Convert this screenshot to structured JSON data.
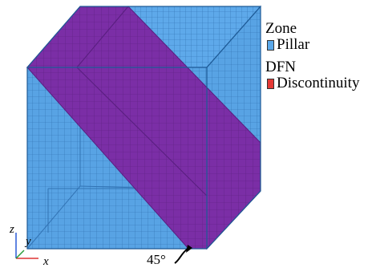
{
  "legend": {
    "zone_heading": "Zone",
    "zone_item": "Pillar",
    "zone_color": "#5aa8ea",
    "dfn_heading": "DFN",
    "dfn_item": "Discontinuity",
    "dfn_color": "#e53935"
  },
  "annotation": {
    "angle": "45°"
  },
  "axes": {
    "z": "z",
    "y": "y",
    "x": "x"
  },
  "colors": {
    "block_fill": "#5aa8ea",
    "block_front": "#58a6e8",
    "block_side": "#4f9ad8",
    "mesh_line": "#2e6fb0",
    "plane_fill": "#7b2ea6",
    "plane_line": "#5a1f80"
  }
}
